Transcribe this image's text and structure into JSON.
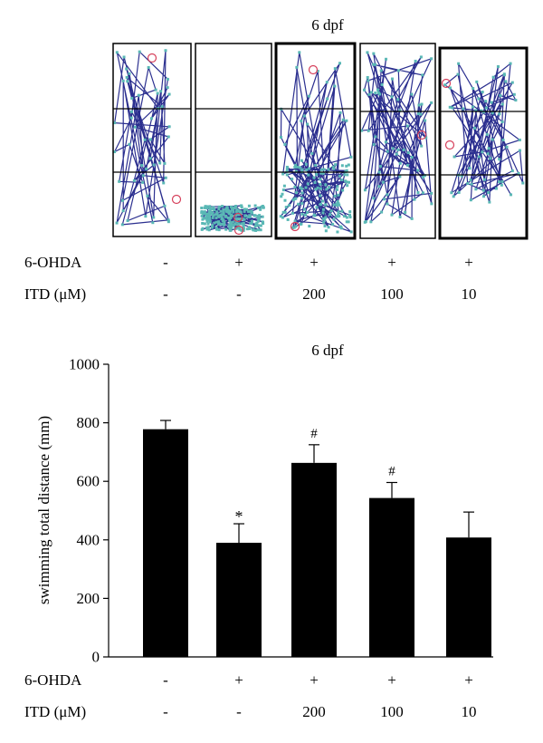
{
  "top_panel": {
    "title": "6 dpf",
    "row_labels": [
      "6-OHDA",
      "ITD (μM)"
    ],
    "ohda": [
      "-",
      "+",
      "+",
      "+",
      "+"
    ],
    "itd": [
      "-",
      "-",
      "200",
      "100",
      "10"
    ],
    "track_color": "#2b2f8f",
    "point_color": "#5ab8b5",
    "marker_color": "#d6405b"
  },
  "bottom_panel": {
    "row_labels": [
      "6-OHDA",
      "ITD (μM)"
    ],
    "ohda": [
      "-",
      "+",
      "+",
      "+",
      "+"
    ],
    "itd": [
      "-",
      "-",
      "200",
      "100",
      "10"
    ]
  },
  "chart_data": {
    "type": "bar",
    "title": "6 dpf",
    "xlabel": "",
    "ylabel": "swimming total distance (mm)",
    "ylim": [
      0,
      1000
    ],
    "yticks": [
      0,
      200,
      400,
      600,
      800,
      1000
    ],
    "values": [
      778,
      390,
      663,
      543,
      408
    ],
    "errors": [
      30,
      65,
      62,
      53,
      87
    ],
    "annotations": [
      "",
      "*",
      "#",
      "#",
      ""
    ],
    "bar_color": "#000000",
    "grid": false
  }
}
